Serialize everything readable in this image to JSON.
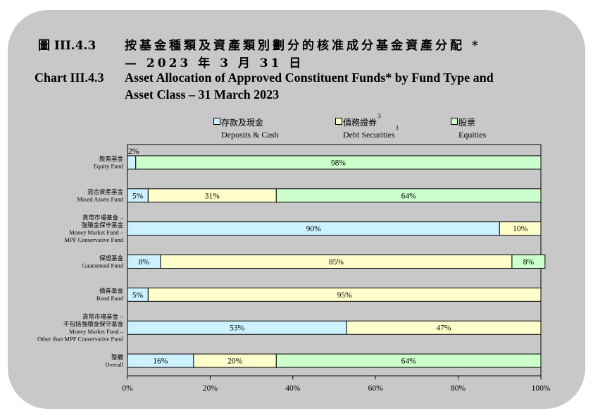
{
  "header": {
    "number_zh": "圖 III.4.3",
    "title_zh_line1": "按基金種類及資產類別劃分的核准成分基金資產分配 *",
    "title_zh_line2": "— 2023 年 3 月 31 日",
    "number_en": "Chart III.4.3",
    "title_en_line1": "Asset Allocation of Approved Constituent Funds* by Fund Type and",
    "title_en_line2": "Asset Class – 31 March 2023"
  },
  "legend": [
    {
      "zh": "存款及現金",
      "en": "Deposits & Cash",
      "sup_zh": "",
      "sup_en": ""
    },
    {
      "zh": "債務證券",
      "en": "Debt Securities",
      "sup_zh": "3",
      "sup_en": "3"
    },
    {
      "zh": "股票",
      "en": "Equities",
      "sup_zh": "",
      "sup_en": ""
    }
  ],
  "colors": {
    "deposits": "#ccf2ff",
    "debt": "#ffffcc",
    "equities": "#ccffcc",
    "panel": "#c8c8c8",
    "plot": "#c8c8c8"
  },
  "chart_data": {
    "type": "bar",
    "orientation": "horizontal",
    "stacked": true,
    "categories": [
      {
        "zh": [
          "股票基金"
        ],
        "en": [
          "Equity Fund"
        ]
      },
      {
        "zh": [
          "混合資產基金"
        ],
        "en": [
          "Mixed Assets Fund"
        ]
      },
      {
        "zh": [
          "貨幣市場基金 –",
          "強積金保守基金"
        ],
        "en": [
          "Money Market Fund –",
          "MPF Conservative Fund"
        ]
      },
      {
        "zh": [
          "保證基金"
        ],
        "en": [
          "Guaranteed Fund"
        ]
      },
      {
        "zh": [
          "債券基金"
        ],
        "en": [
          "Bond Fund"
        ]
      },
      {
        "zh": [
          "貨幣市場基金 –",
          "不包括強積金保守基金"
        ],
        "en": [
          "Money Market Fund –",
          "Other than MPF Conservative Fund"
        ]
      },
      {
        "zh": [
          "整體"
        ],
        "en": [
          "Overall"
        ]
      }
    ],
    "series": [
      {
        "name": "Deposits & Cash",
        "values": [
          2,
          5,
          90,
          8,
          5,
          53,
          16
        ]
      },
      {
        "name": "Debt Securities",
        "values": [
          0,
          31,
          10,
          85,
          95,
          47,
          20
        ]
      },
      {
        "name": "Equities",
        "values": [
          98,
          64,
          0,
          8,
          0,
          0,
          64
        ]
      }
    ],
    "xlim": [
      0,
      100
    ],
    "xticks": [
      "0%",
      "20%",
      "40%",
      "60%",
      "80%",
      "100%"
    ],
    "value_suffix": "%",
    "grid": false,
    "legend_position": "top"
  }
}
